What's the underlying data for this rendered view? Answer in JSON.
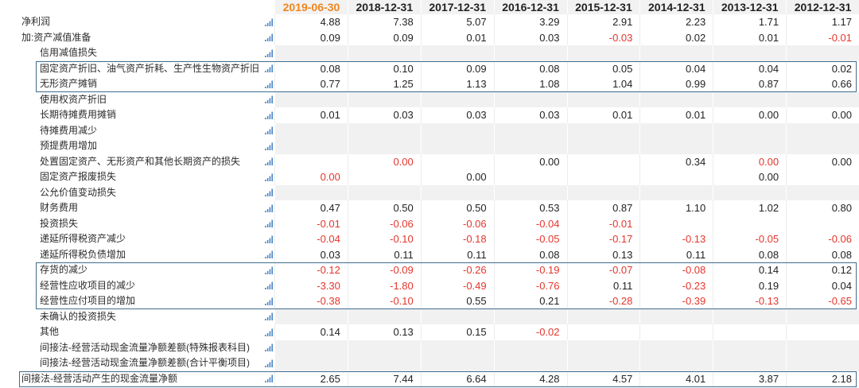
{
  "colors": {
    "negative": "#e5352c",
    "header_highlight": "#f0861d",
    "highlight_box_border": "#3f6d8e",
    "chart_icon": "#4a84c4"
  },
  "row_icon": "bar-chart-icon",
  "columns": [
    {
      "label": "2019-06-30",
      "highlight": true
    },
    {
      "label": "2018-12-31"
    },
    {
      "label": "2017-12-31"
    },
    {
      "label": "2016-12-31"
    },
    {
      "label": "2015-12-31"
    },
    {
      "label": "2014-12-31"
    },
    {
      "label": "2013-12-31"
    },
    {
      "label": "2012-12-31"
    }
  ],
  "rows": [
    {
      "label": "净利润",
      "level": 0,
      "values": [
        "4.88",
        "7.38",
        "5.07",
        "3.29",
        "2.91",
        "2.23",
        "1.71",
        "1.17"
      ]
    },
    {
      "label": "加:资产减值准备",
      "level": 0,
      "values": [
        "0.09",
        "0.09",
        "0.01",
        "0.03",
        "-0.03",
        "0.02",
        "0.01",
        "-0.01"
      ]
    },
    {
      "label": "信用减值损失",
      "level": 1,
      "values": [
        "",
        "",
        "",
        "",
        "",
        "",
        "",
        ""
      ]
    },
    {
      "label": "固定资产折旧、油气资产折耗、生产性生物资产折旧",
      "level": 1,
      "values": [
        "0.08",
        "0.10",
        "0.09",
        "0.08",
        "0.05",
        "0.04",
        "0.04",
        "0.02"
      ]
    },
    {
      "label": "无形资产摊销",
      "level": 1,
      "values": [
        "0.77",
        "1.25",
        "1.13",
        "1.08",
        "1.04",
        "0.99",
        "0.87",
        "0.66"
      ]
    },
    {
      "label": "使用权资产折旧",
      "level": 1,
      "values": [
        "",
        "",
        "",
        "",
        "",
        "",
        "",
        ""
      ]
    },
    {
      "label": "长期待摊费用摊销",
      "level": 1,
      "values": [
        "0.01",
        "0.03",
        "0.03",
        "0.03",
        "0.01",
        "0.01",
        "0.00",
        "0.00"
      ]
    },
    {
      "label": "待摊费用减少",
      "level": 1,
      "values": [
        "",
        "",
        "",
        "",
        "",
        "",
        "",
        ""
      ]
    },
    {
      "label": "预提费用增加",
      "level": 1,
      "values": [
        "",
        "",
        "",
        "",
        "",
        "",
        "",
        ""
      ]
    },
    {
      "label": "处置固定资产、无形资产和其他长期资产的损失",
      "level": 1,
      "values": [
        "",
        {
          "text": "0.00",
          "tone": "negative"
        },
        "",
        "0.00",
        "",
        "0.34",
        {
          "text": "0.00",
          "tone": "negative"
        },
        "0.00"
      ]
    },
    {
      "label": "固定资产报废损失",
      "level": 1,
      "values": [
        {
          "text": "0.00",
          "tone": "negative"
        },
        "",
        "0.00",
        "",
        "",
        "",
        "0.00",
        ""
      ]
    },
    {
      "label": "公允价值变动损失",
      "level": 1,
      "values": [
        "",
        "",
        "",
        "",
        "",
        "",
        "",
        ""
      ]
    },
    {
      "label": "财务费用",
      "level": 1,
      "values": [
        "0.47",
        "0.50",
        "0.50",
        "0.53",
        "0.87",
        "1.10",
        "1.02",
        "0.80"
      ]
    },
    {
      "label": "投资损失",
      "level": 1,
      "values": [
        "-0.01",
        "-0.06",
        "-0.06",
        "-0.04",
        "-0.01",
        "",
        "",
        ""
      ]
    },
    {
      "label": "递延所得税资产减少",
      "level": 1,
      "values": [
        "-0.04",
        "-0.10",
        "-0.18",
        "-0.05",
        "-0.17",
        "-0.13",
        "-0.05",
        "-0.06"
      ]
    },
    {
      "label": "递延所得税负债增加",
      "level": 1,
      "values": [
        "0.03",
        "0.11",
        "0.11",
        "0.08",
        "0.13",
        "0.11",
        "0.08",
        "0.08"
      ]
    },
    {
      "label": "存货的减少",
      "level": 1,
      "values": [
        "-0.12",
        "-0.09",
        "-0.26",
        "-0.19",
        "-0.07",
        "-0.08",
        "0.14",
        "0.12"
      ]
    },
    {
      "label": "经营性应收项目的减少",
      "level": 1,
      "values": [
        "-3.30",
        "-1.80",
        "-0.49",
        "-0.76",
        "0.11",
        "-0.23",
        "0.19",
        "0.04"
      ]
    },
    {
      "label": "经营性应付项目的增加",
      "level": 1,
      "values": [
        "-0.38",
        "-0.10",
        "0.55",
        "0.21",
        "-0.28",
        "-0.39",
        "-0.13",
        "-0.65"
      ]
    },
    {
      "label": "未确认的投资损失",
      "level": 1,
      "values": [
        "",
        "",
        "",
        "",
        "",
        "",
        "",
        ""
      ]
    },
    {
      "label": "其他",
      "level": 1,
      "values": [
        "0.14",
        "0.13",
        "0.15",
        "-0.02",
        "",
        "",
        "",
        ""
      ]
    },
    {
      "label": "间接法-经营活动现金流量净额差额(特殊报表科目)",
      "level": 1,
      "values": [
        "",
        "",
        "",
        "",
        "",
        "",
        "",
        ""
      ]
    },
    {
      "label": "间接法-经营活动现金流量净额差额(合计平衡项目)",
      "level": 1,
      "values": [
        "",
        "",
        "",
        "",
        "",
        "",
        "",
        ""
      ]
    },
    {
      "label": "间接法-经营活动产生的现金流量净额",
      "level": 0,
      "values": [
        "2.65",
        "7.44",
        "6.64",
        "4.28",
        "4.57",
        "4.01",
        "3.87",
        "2.18"
      ]
    }
  ]
}
